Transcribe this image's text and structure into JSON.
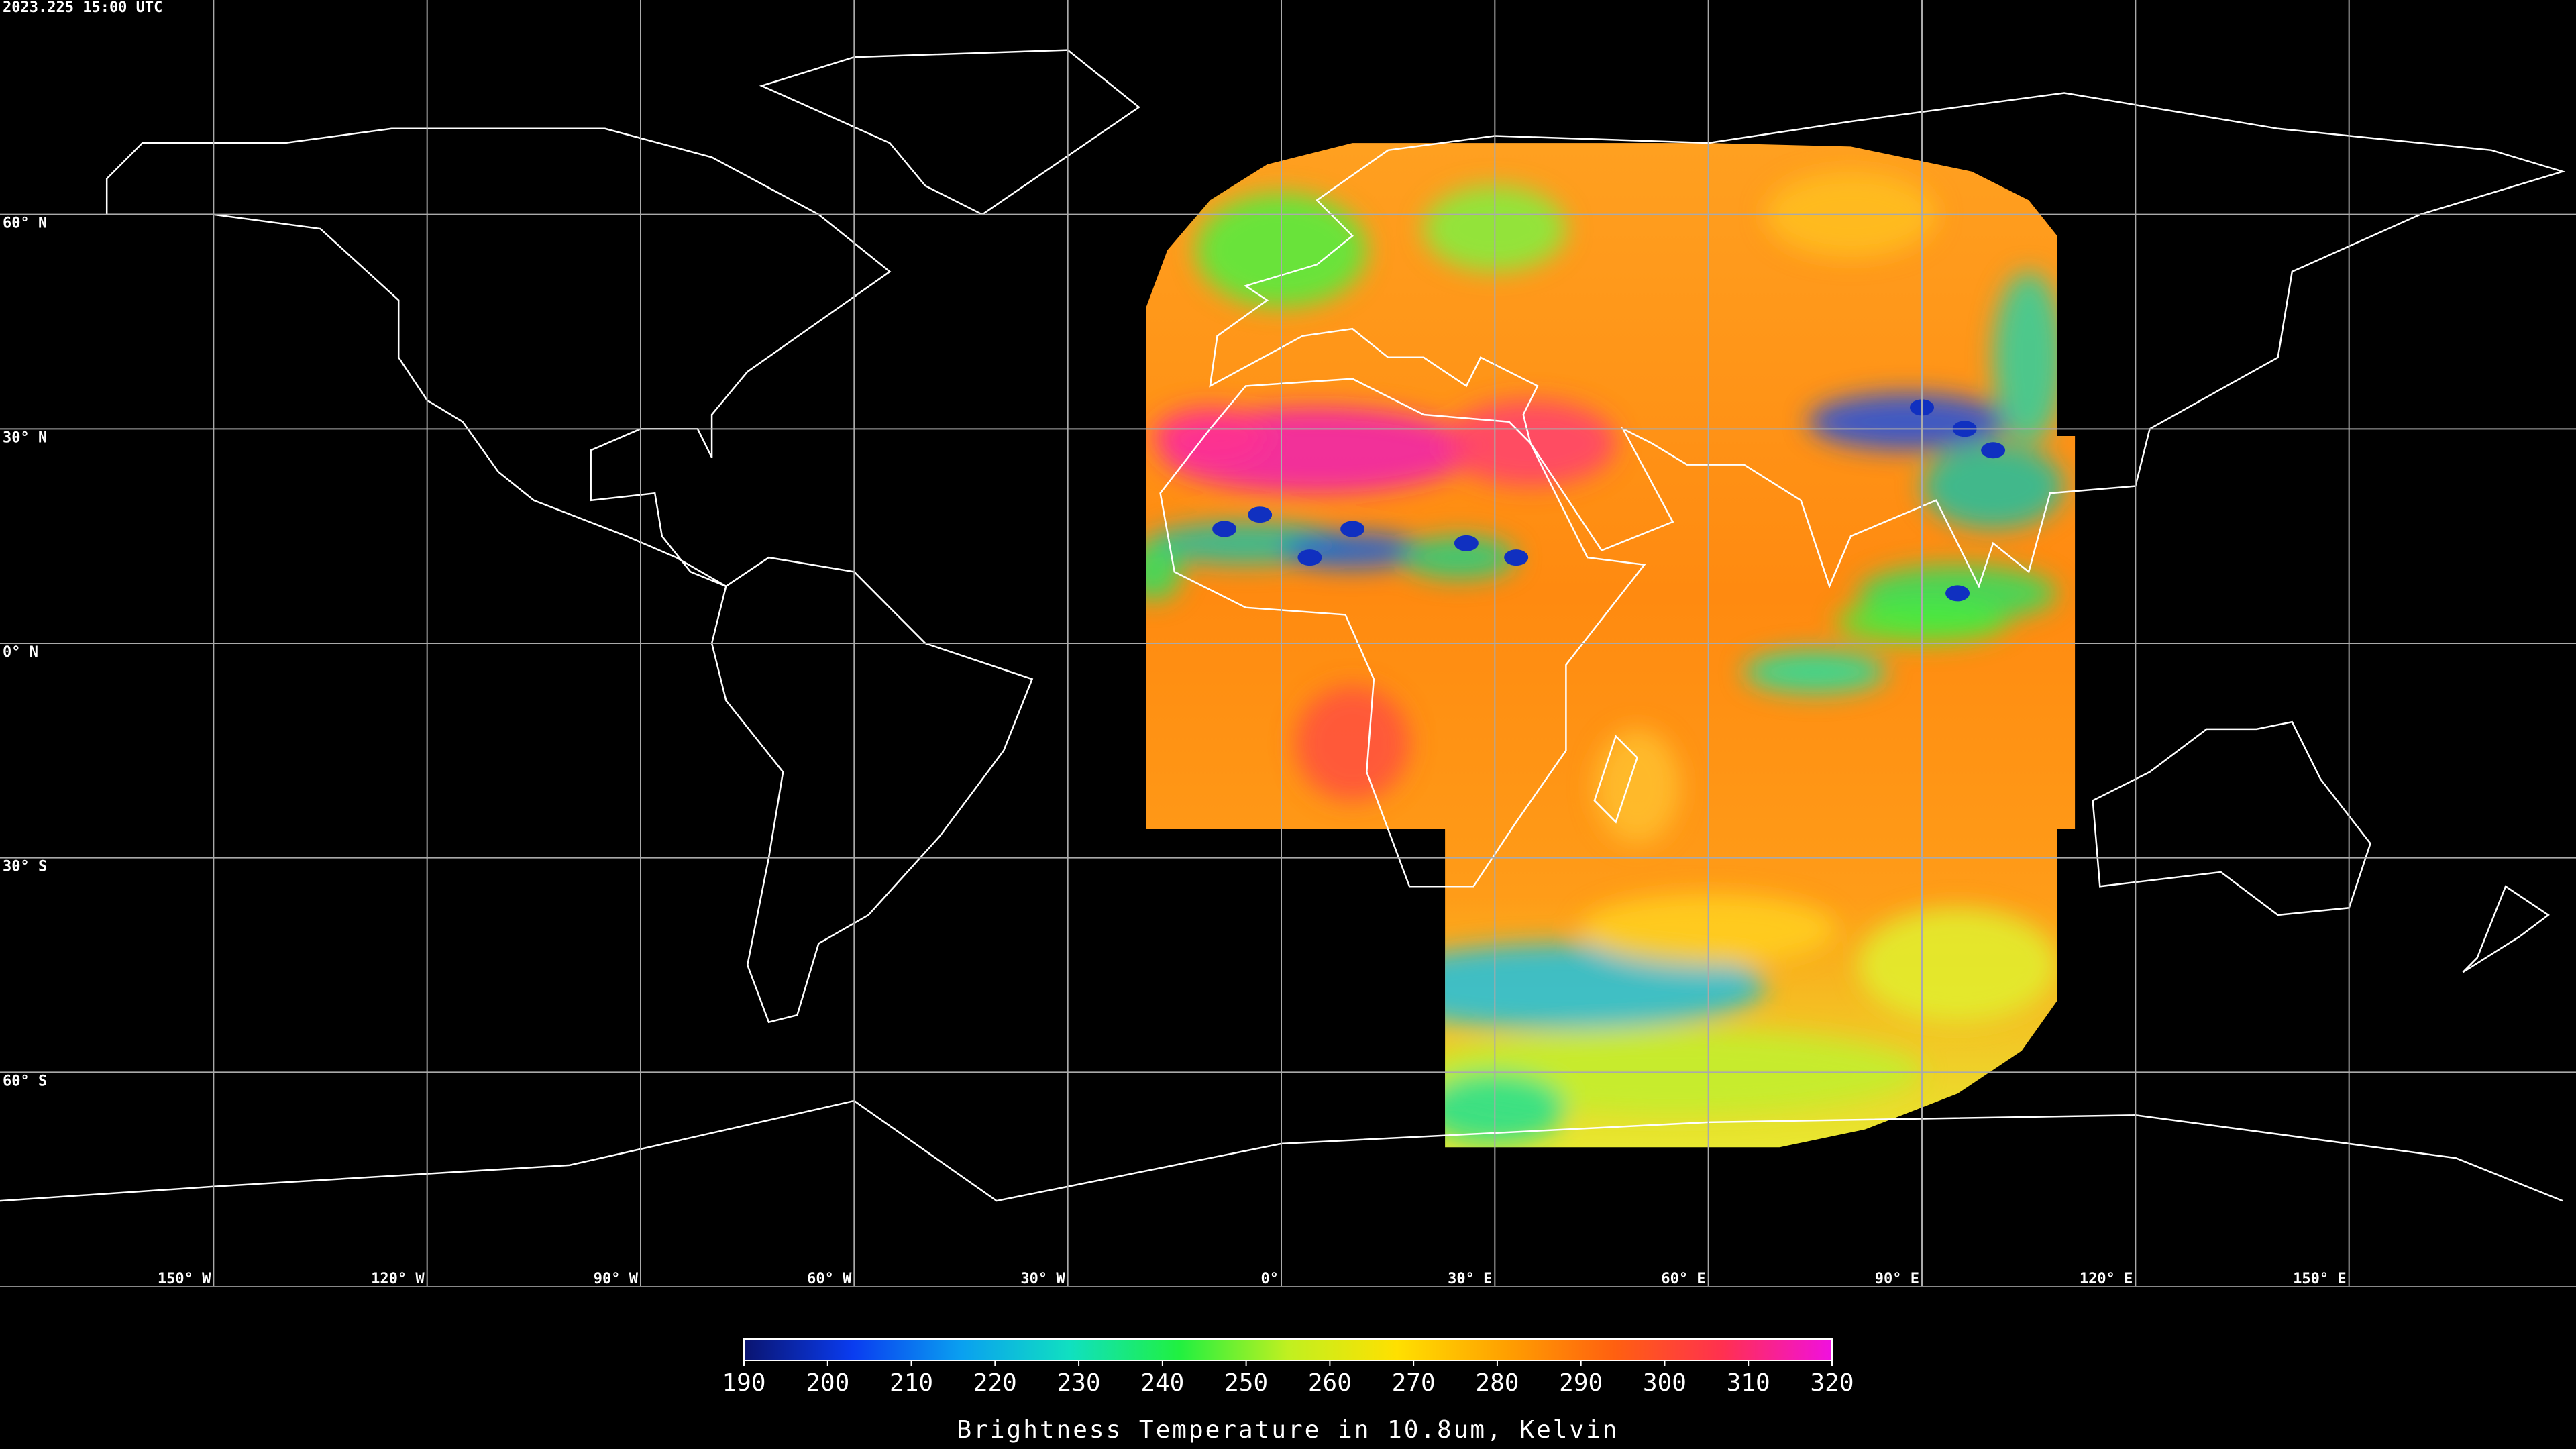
{
  "header": {
    "timestamp": "2023.225 15:00 UTC"
  },
  "graticule": {
    "latitudes": [
      {
        "value": 60,
        "label": "60° N"
      },
      {
        "value": 30,
        "label": "30° N"
      },
      {
        "value": 0,
        "label": "0° N"
      },
      {
        "value": -30,
        "label": "30° S"
      },
      {
        "value": -60,
        "label": "60° S"
      }
    ],
    "longitudes": [
      {
        "value": -150,
        "label": "150° W"
      },
      {
        "value": -120,
        "label": "120° W"
      },
      {
        "value": -90,
        "label": "90° W"
      },
      {
        "value": -60,
        "label": "60° W"
      },
      {
        "value": -30,
        "label": "30° W"
      },
      {
        "value": 0,
        "label": "0°"
      },
      {
        "value": 30,
        "label": "30° E"
      },
      {
        "value": 60,
        "label": "60° E"
      },
      {
        "value": 90,
        "label": "90° E"
      },
      {
        "value": 120,
        "label": "120° E"
      },
      {
        "value": 150,
        "label": "150° E"
      }
    ]
  },
  "colorbar": {
    "label": "Brightness Temperature in 10.8um, Kelvin",
    "range": [
      190,
      320
    ],
    "ticks": [
      190,
      200,
      210,
      220,
      230,
      240,
      250,
      260,
      270,
      280,
      290,
      300,
      310,
      320
    ],
    "colors": [
      "#0a1470",
      "#0a3cf0",
      "#0aa0f0",
      "#10e0c0",
      "#20f040",
      "#c0f020",
      "#ffe000",
      "#ffa000",
      "#ff6010",
      "#ff3050",
      "#f010e0"
    ]
  }
}
